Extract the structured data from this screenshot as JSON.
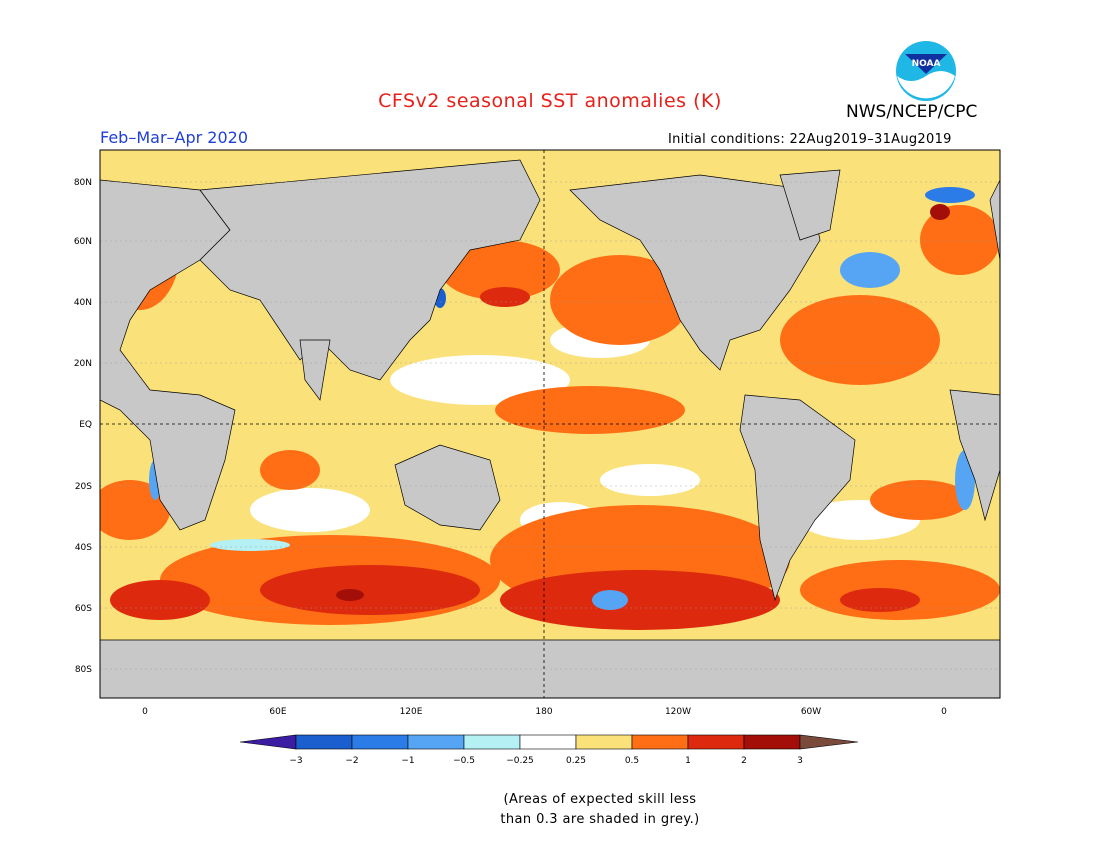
{
  "title": "CFSv2 seasonal SST anomalies (K)",
  "agency": "NWS/NCEP/CPC",
  "logo_text": "NOAA",
  "period": "Feb–Mar–Apr 2020",
  "initial_conditions": "Initial conditions: 22Aug2019–31Aug2019",
  "lat_labels": [
    "80N",
    "60N",
    "40N",
    "20N",
    "EQ",
    "20S",
    "40S",
    "60S",
    "80S"
  ],
  "lon_labels": [
    "0",
    "60E",
    "120E",
    "180",
    "120W",
    "60W",
    "0"
  ],
  "colorbar": {
    "tick_labels": [
      "−3",
      "−2",
      "−1",
      "−0.5",
      "−0.25",
      "0.25",
      "0.5",
      "1",
      "2",
      "3"
    ],
    "colors": [
      "#3a1da3",
      "#1b5fcf",
      "#2c7ce8",
      "#56a5f5",
      "#b5f0f5",
      "#ffffff",
      "#fbe17a",
      "#ff6e14",
      "#dd2a0e",
      "#a30f08",
      "#7a4a3a"
    ]
  },
  "note_line1": "(Areas of expected skill less",
  "note_line2": "than 0.3 are shaded in grey.)",
  "colors": {
    "land": "#c8c8c8",
    "ocean_weak": "#ffffff",
    "title": "#e8201a",
    "period": "#1f3fd8"
  }
}
